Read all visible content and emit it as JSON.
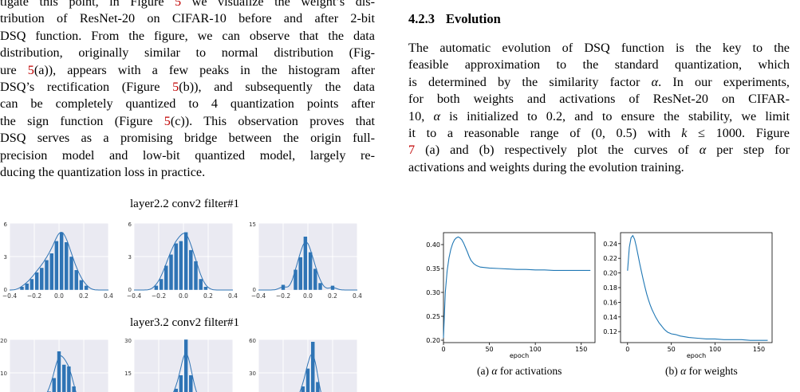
{
  "left_column": {
    "paragraph_lines": [
      {
        "segments": [
          {
            "t": "tigate this point, in Figure "
          },
          {
            "t": "5",
            "ref": true
          },
          {
            "t": " we visualize the weight’s dis-"
          }
        ]
      },
      {
        "segments": [
          {
            "t": "tribution of ResNet-20 on CIFAR-10 before and after 2-bit"
          }
        ]
      },
      {
        "segments": [
          {
            "t": "DSQ function. From the figure, we can observe that the data"
          }
        ]
      },
      {
        "segments": [
          {
            "t": "distribution, originally similar to normal distribution (Fig-"
          }
        ]
      },
      {
        "segments": [
          {
            "t": "ure "
          },
          {
            "t": "5",
            "ref": true
          },
          {
            "t": "(a)), appears with a few peaks in the histogram after"
          }
        ]
      },
      {
        "segments": [
          {
            "t": "DSQ’s rectification (Figure "
          },
          {
            "t": "5",
            "ref": true
          },
          {
            "t": "(b)), and subsequently the data"
          }
        ]
      },
      {
        "segments": [
          {
            "t": "can be completely quantized to 4 quantization points after"
          }
        ]
      },
      {
        "segments": [
          {
            "t": "the sign function (Figure "
          },
          {
            "t": "5",
            "ref": true
          },
          {
            "t": "(c)). This observation proves that"
          }
        ]
      },
      {
        "segments": [
          {
            "t": "DSQ serves as a promising bridge between the origin full-"
          }
        ]
      },
      {
        "segments": [
          {
            "t": "precision model and low-bit quantized model, largely re-"
          }
        ]
      },
      {
        "segments": [
          {
            "t": "ducing the quantization loss in practice."
          }
        ]
      }
    ],
    "figure5": {
      "row1_title": "layer2.2 conv2 filter#1",
      "row2_title": "layer3.2 conv2 filter#1",
      "x_ticks": [
        "−0.4",
        "−0.2",
        "0.0",
        "0.2",
        "0.4"
      ],
      "row1_panels": [
        {
          "y_max_label": "6",
          "y_mid_label": "3",
          "y_zero_label": "0",
          "bins": [
            -0.3,
            -0.26,
            -0.22,
            -0.18,
            -0.14,
            -0.1,
            -0.06,
            -0.02,
            0.02,
            0.06,
            0.1,
            0.14,
            0.18,
            0.22
          ],
          "heights": [
            0.3,
            0.6,
            1.0,
            1.6,
            2.0,
            2.7,
            3.3,
            4.4,
            5.2,
            4.3,
            3.0,
            1.8,
            0.9,
            0.4
          ],
          "ymax": 6
        },
        {
          "y_max_label": "6",
          "y_mid_label": "3",
          "y_zero_label": "0",
          "bins": [
            -0.22,
            -0.18,
            -0.14,
            -0.1,
            -0.06,
            -0.02,
            0.02,
            0.06,
            0.1,
            0.14,
            0.18
          ],
          "heights": [
            0.4,
            1.0,
            2.2,
            3.2,
            4.2,
            4.4,
            5.2,
            3.6,
            2.6,
            1.0,
            0.3
          ],
          "ymax": 6
        },
        {
          "y_max_label": "15",
          "y_mid_label": "",
          "y_zero_label": "0",
          "bins": [
            -0.2,
            -0.1,
            -0.06,
            -0.02,
            0.02,
            0.06,
            0.1,
            0.2
          ],
          "heights": [
            1.2,
            4.6,
            7.4,
            12.0,
            8.5,
            4.8,
            1.6,
            1.0
          ],
          "ymax": 15
        }
      ],
      "row2_panels": [
        {
          "y_max_label": "20",
          "y_mid_label": "10",
          "y_zero_label": "",
          "bins": [
            -0.12,
            -0.08,
            -0.04,
            0.0,
            0.04,
            0.08,
            0.12
          ],
          "heights": [
            2.0,
            4.5,
            8.5,
            16.5,
            12.5,
            12.0,
            6.0
          ],
          "ymax": 20
        },
        {
          "y_max_label": "30",
          "y_mid_label": "15",
          "y_zero_label": "",
          "bins": [
            -0.1,
            -0.06,
            -0.02,
            0.02,
            0.06,
            0.1
          ],
          "heights": [
            3.0,
            8.0,
            14.0,
            30.0,
            14.0,
            6.0
          ],
          "ymax": 30
        },
        {
          "y_max_label": "60",
          "y_mid_label": "30",
          "y_zero_label": "",
          "bins": [
            -0.08,
            -0.04,
            0.0,
            0.04,
            0.08
          ],
          "heights": [
            6.0,
            18.0,
            34.0,
            58.0,
            22.0
          ],
          "ymax": 60
        }
      ]
    }
  },
  "right_column": {
    "section_number": "4.2.3",
    "section_title": "Evolution",
    "paragraph_lines": [
      {
        "segments": [
          {
            "t": "The automatic evolution of DSQ function is the key to the"
          }
        ]
      },
      {
        "segments": [
          {
            "t": "feasible approximation to the standard quantization, which"
          }
        ]
      },
      {
        "segments": [
          {
            "t": "is determined by the similarity factor "
          },
          {
            "t": "α",
            "math": true
          },
          {
            "t": ". In our experiments,"
          }
        ]
      },
      {
        "segments": [
          {
            "t": "for both weights and activations of ResNet-20 on CIFAR-"
          }
        ]
      },
      {
        "segments": [
          {
            "t": "10, "
          },
          {
            "t": "α",
            "math": true
          },
          {
            "t": " is initialized to 0.2, and to ensure the stability, we limit"
          }
        ]
      },
      {
        "segments": [
          {
            "t": "it to a reasonable range of "
          },
          {
            "t": "(0, 0.5)"
          },
          {
            "t": " with "
          },
          {
            "t": "k",
            "math": true
          },
          {
            "t": " ≤ 1000. Figure"
          }
        ]
      },
      {
        "segments": [
          {
            "t": "7",
            "ref": true
          },
          {
            "t": " (a) and (b) respectively plot the curves of "
          },
          {
            "t": "α",
            "math": true
          },
          {
            "t": " per step for"
          }
        ]
      },
      {
        "segments": [
          {
            "t": "activations and weights during the evolution training."
          }
        ]
      }
    ],
    "figure7": {
      "caption_a_prefix": "(a) ",
      "caption_a_alpha": "α",
      "caption_a_suffix": " for activations",
      "caption_b_prefix": "(b) ",
      "caption_b_alpha": "α",
      "caption_b_suffix": " for weights",
      "chart_data": [
        {
          "type": "line",
          "title": "",
          "xlabel": "epoch",
          "ylabel": "",
          "xlim": [
            0,
            165
          ],
          "ylim": [
            0.195,
            0.425
          ],
          "x_ticks": [
            0,
            50,
            100,
            150
          ],
          "y_ticks": [
            0.2,
            0.25,
            0.3,
            0.35,
            0.4
          ],
          "y_tick_labels": [
            "0.20",
            "0.25",
            "0.30",
            "0.35",
            "0.40"
          ],
          "x": [
            0,
            1,
            2,
            4,
            6,
            8,
            10,
            12,
            14,
            16,
            18,
            20,
            22,
            24,
            26,
            28,
            30,
            33,
            36,
            40,
            45,
            50,
            60,
            70,
            80,
            90,
            100,
            110,
            120,
            130,
            140,
            150,
            160
          ],
          "y": [
            0.205,
            0.255,
            0.3,
            0.345,
            0.372,
            0.39,
            0.402,
            0.41,
            0.414,
            0.416,
            0.414,
            0.41,
            0.403,
            0.394,
            0.385,
            0.375,
            0.367,
            0.36,
            0.356,
            0.353,
            0.352,
            0.351,
            0.35,
            0.349,
            0.348,
            0.348,
            0.347,
            0.347,
            0.346,
            0.346,
            0.346,
            0.346,
            0.346
          ]
        },
        {
          "type": "line",
          "title": "",
          "xlabel": "epoch",
          "ylabel": "",
          "xlim": [
            -8,
            165
          ],
          "ylim": [
            0.105,
            0.255
          ],
          "x_ticks": [
            0,
            50,
            100,
            150
          ],
          "y_ticks": [
            0.12,
            0.14,
            0.16,
            0.18,
            0.2,
            0.22,
            0.24
          ],
          "y_tick_labels": [
            "0.12",
            "0.14",
            "0.16",
            "0.18",
            "0.20",
            "0.22",
            "0.24"
          ],
          "x": [
            0,
            2,
            4,
            6,
            8,
            10,
            12,
            14,
            16,
            18,
            20,
            22,
            24,
            26,
            28,
            30,
            32,
            34,
            36,
            38,
            40,
            42,
            44,
            46,
            48,
            50,
            55,
            60,
            70,
            80,
            90,
            100,
            110,
            120,
            130,
            140,
            150,
            160
          ],
          "y": [
            0.203,
            0.235,
            0.248,
            0.251,
            0.246,
            0.236,
            0.224,
            0.212,
            0.201,
            0.19,
            0.18,
            0.171,
            0.163,
            0.156,
            0.15,
            0.145,
            0.14,
            0.136,
            0.132,
            0.129,
            0.126,
            0.123,
            0.121,
            0.119,
            0.118,
            0.117,
            0.116,
            0.114,
            0.112,
            0.111,
            0.11,
            0.11,
            0.109,
            0.109,
            0.109,
            0.108,
            0.108,
            0.108
          ]
        }
      ]
    }
  }
}
